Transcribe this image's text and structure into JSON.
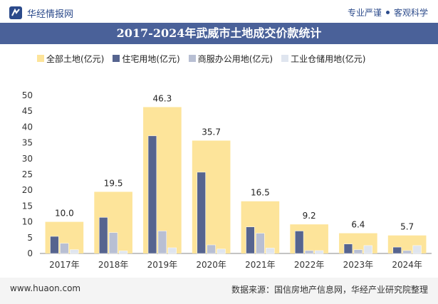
{
  "header": {
    "brand": "华经情报网",
    "slogan_left": "专业严谨",
    "slogan_right": "客观科学"
  },
  "title": "2017-2024年武威市土地成交价款统计",
  "legend": [
    {
      "label": "全部土地(亿元)",
      "color": "#fde49a"
    },
    {
      "label": "住宅用地(亿元)",
      "color": "#56648f"
    },
    {
      "label": "商服办公用地(亿元)",
      "color": "#b8bfd3"
    },
    {
      "label": "工业仓储用地(亿元)",
      "color": "#dfe5ef"
    }
  ],
  "chart_data": {
    "type": "bar",
    "title": "2017-2024年武威市土地成交价款统计",
    "categories": [
      "2017年",
      "2018年",
      "2019年",
      "2020年",
      "2021年",
      "2022年",
      "2023年",
      "2024年"
    ],
    "series": [
      {
        "name": "全部土地(亿元)",
        "color": "#fde49a",
        "values": [
          10.0,
          19.5,
          46.3,
          35.7,
          16.5,
          9.2,
          6.4,
          5.7
        ],
        "labels": [
          "10.0",
          "19.5",
          "46.3",
          "35.7",
          "16.5",
          "9.2",
          "6.4",
          "5.7"
        ]
      },
      {
        "name": "住宅用地(亿元)",
        "color": "#56648f",
        "values": [
          5.4,
          11.4,
          37.2,
          25.7,
          8.4,
          7.1,
          3.0,
          2.0
        ]
      },
      {
        "name": "商服办公用地(亿元)",
        "color": "#b8bfd3",
        "values": [
          3.2,
          6.6,
          7.1,
          2.7,
          6.4,
          0.9,
          1.2,
          0.9
        ]
      },
      {
        "name": "工业仓储用地(亿元)",
        "color": "#dfe5ef",
        "values": [
          1.2,
          0.8,
          1.8,
          1.4,
          1.7,
          0.9,
          2.5,
          2.5
        ]
      }
    ],
    "ylim": [
      0,
      50
    ],
    "yticks": [
      0,
      5,
      10,
      15,
      20,
      25,
      30,
      35,
      40,
      45,
      50
    ],
    "xlabel": "",
    "ylabel": ""
  },
  "footer": {
    "website": "www.huaon.com",
    "source": "数据来源：国信房地产信息网，华经产业研究院整理"
  }
}
